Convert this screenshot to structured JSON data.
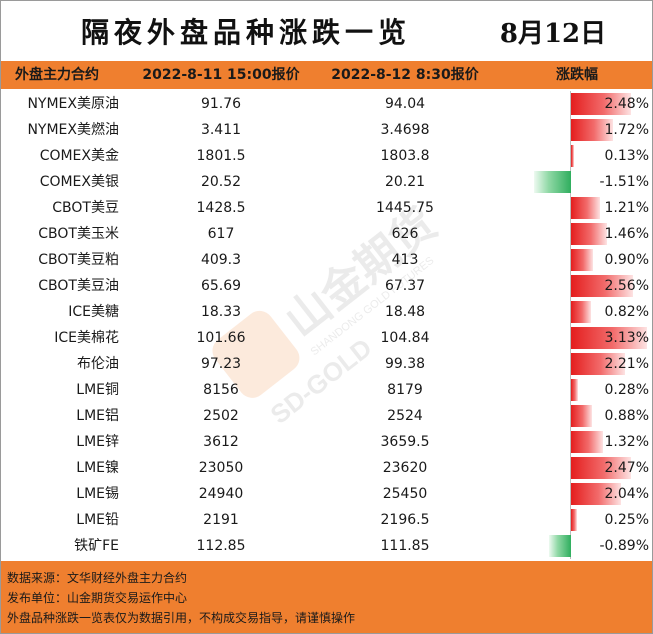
{
  "title": "隔夜外盘品种涨跌一览",
  "date": "8月12日",
  "headers": {
    "name": "外盘主力合约",
    "prev": "2022-8-11 15:00报价",
    "curr": "2022-8-12 8:30报价",
    "change": "涨跌幅"
  },
  "rows": [
    {
      "name": "NYMEX美原油",
      "prev": "91.76",
      "curr": "94.04",
      "change": "2.48%",
      "pct": 2.48
    },
    {
      "name": "NYMEX美燃油",
      "prev": "3.411",
      "curr": "3.4698",
      "change": "1.72%",
      "pct": 1.72
    },
    {
      "name": "COMEX美金",
      "prev": "1801.5",
      "curr": "1803.8",
      "change": "0.13%",
      "pct": 0.13
    },
    {
      "name": "COMEX美银",
      "prev": "20.52",
      "curr": "20.21",
      "change": "-1.51%",
      "pct": -1.51
    },
    {
      "name": "CBOT美豆",
      "prev": "1428.5",
      "curr": "1445.75",
      "change": "1.21%",
      "pct": 1.21
    },
    {
      "name": "CBOT美玉米",
      "prev": "617",
      "curr": "626",
      "change": "1.46%",
      "pct": 1.46
    },
    {
      "name": "CBOT美豆粕",
      "prev": "409.3",
      "curr": "413",
      "change": "0.90%",
      "pct": 0.9
    },
    {
      "name": "CBOT美豆油",
      "prev": "65.69",
      "curr": "67.37",
      "change": "2.56%",
      "pct": 2.56
    },
    {
      "name": "ICE美糖",
      "prev": "18.33",
      "curr": "18.48",
      "change": "0.82%",
      "pct": 0.82
    },
    {
      "name": "ICE美棉花",
      "prev": "101.66",
      "curr": "104.84",
      "change": "3.13%",
      "pct": 3.13
    },
    {
      "name": "布伦油",
      "prev": "97.23",
      "curr": "99.38",
      "change": "2.21%",
      "pct": 2.21
    },
    {
      "name": "LME铜",
      "prev": "8156",
      "curr": "8179",
      "change": "0.28%",
      "pct": 0.28
    },
    {
      "name": "LME铝",
      "prev": "2502",
      "curr": "2524",
      "change": "0.88%",
      "pct": 0.88
    },
    {
      "name": "LME锌",
      "prev": "3612",
      "curr": "3659.5",
      "change": "1.32%",
      "pct": 1.32
    },
    {
      "name": "LME镍",
      "prev": "23050",
      "curr": "23620",
      "change": "2.47%",
      "pct": 2.47
    },
    {
      "name": "LME锡",
      "prev": "24940",
      "curr": "25450",
      "change": "2.04%",
      "pct": 2.04
    },
    {
      "name": "LME铅",
      "prev": "2191",
      "curr": "2196.5",
      "change": "0.25%",
      "pct": 0.25
    },
    {
      "name": "铁矿FE",
      "prev": "112.85",
      "curr": "111.85",
      "change": "-0.89%",
      "pct": -0.89
    }
  ],
  "colors": {
    "header_bg": "#ef7f2f",
    "up_bar": "#e41e1e",
    "down_bar": "#2fae5e"
  },
  "watermark": {
    "brand_cn": "山金期货",
    "brand_en": "SHANDONG GOLD FUTURES",
    "brand_short": "SD-GOLD"
  },
  "footer": {
    "source": "数据来源：文华财经外盘主力合约",
    "publisher": "发布单位：山金期货交易运作中心",
    "disclaimer": "外盘品种涨跌一览表仅为数据引用，不构成交易指导，请谨慎操作"
  }
}
